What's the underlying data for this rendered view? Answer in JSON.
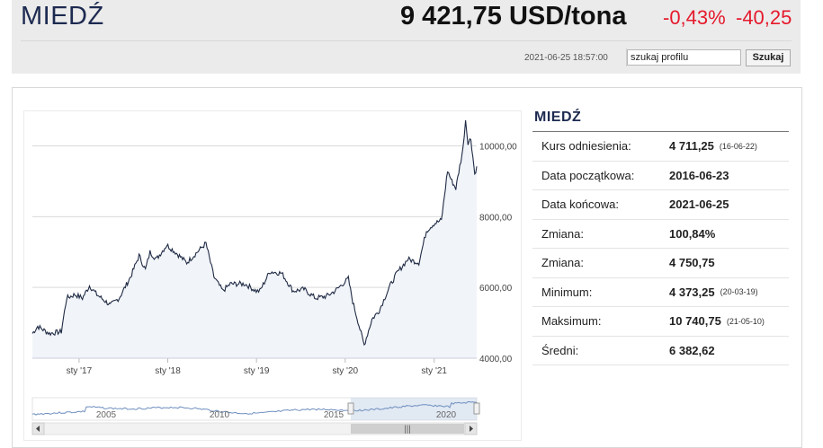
{
  "header": {
    "title": "MIEDŹ",
    "price": "9 421,75 USD/tona",
    "change_pct": "-0,43%",
    "change_abs": "-40,25",
    "timestamp": "2021-06-25 18:57:00",
    "search_value": "szukaj profilu",
    "search_button": "Szukaj"
  },
  "colors": {
    "accent_red": "#e5192c",
    "title_navy": "#1d2a50",
    "line": "#1f2a44",
    "navigator_fill": "#c8d7ea"
  },
  "info": {
    "title": "MIEDŹ",
    "rows": [
      {
        "label": "Kurs odniesienia:",
        "value": "4 711,25",
        "date": "(16-06-22)"
      },
      {
        "label": "Data początkowa:",
        "value": "2016-06-23",
        "date": ""
      },
      {
        "label": "Data końcowa:",
        "value": "2021-06-25",
        "date": ""
      },
      {
        "label": "Zmiana:",
        "value": "100,84%",
        "date": ""
      },
      {
        "label": "Zmiana:",
        "value": "4 750,75",
        "date": ""
      },
      {
        "label": "Minimum:",
        "value": "4 373,25",
        "date": "(20-03-19)"
      },
      {
        "label": "Maksimum:",
        "value": "10 740,75",
        "date": "(21-05-10)"
      },
      {
        "label": "Średni:",
        "value": "6 382,62",
        "date": ""
      }
    ]
  },
  "chart_data": {
    "type": "area",
    "x_ticks": [
      "sty '17",
      "sty '18",
      "sty '19",
      "sty '20",
      "sty '21"
    ],
    "y_ticks": [
      "4000,00",
      "6000,00",
      "8000,00",
      "10000,00"
    ],
    "ylim": [
      4000,
      10800
    ],
    "xlim": [
      "2016-06-23",
      "2021-06-25"
    ],
    "grid": true,
    "series": [
      {
        "points": [
          [
            "2016-06-23",
            4700
          ],
          [
            "2016-07-15",
            4900
          ],
          [
            "2016-09-01",
            4700
          ],
          [
            "2016-10-20",
            4750
          ],
          [
            "2016-11-11",
            5700
          ],
          [
            "2016-12-15",
            5800
          ],
          [
            "2017-01-15",
            5700
          ],
          [
            "2017-02-13",
            6050
          ],
          [
            "2017-03-15",
            5800
          ],
          [
            "2017-05-10",
            5500
          ],
          [
            "2017-06-15",
            5700
          ],
          [
            "2017-08-01",
            6300
          ],
          [
            "2017-09-05",
            6900
          ],
          [
            "2017-10-01",
            6500
          ],
          [
            "2017-10-20",
            7000
          ],
          [
            "2017-11-15",
            6800
          ],
          [
            "2017-12-28",
            7200
          ],
          [
            "2018-02-01",
            7000
          ],
          [
            "2018-03-20",
            6700
          ],
          [
            "2018-04-18",
            6900
          ],
          [
            "2018-06-07",
            7250
          ],
          [
            "2018-07-10",
            6300
          ],
          [
            "2018-08-15",
            5900
          ],
          [
            "2018-09-15",
            6100
          ],
          [
            "2018-11-15",
            6100
          ],
          [
            "2018-12-31",
            5900
          ],
          [
            "2019-01-15",
            5900
          ],
          [
            "2019-02-25",
            6450
          ],
          [
            "2019-04-15",
            6400
          ],
          [
            "2019-06-01",
            5900
          ],
          [
            "2019-07-15",
            5950
          ],
          [
            "2019-09-01",
            5700
          ],
          [
            "2019-10-15",
            5750
          ],
          [
            "2019-11-20",
            5900
          ],
          [
            "2020-01-14",
            6250
          ],
          [
            "2020-02-01",
            5600
          ],
          [
            "2020-03-19",
            4373
          ],
          [
            "2020-04-20",
            5100
          ],
          [
            "2020-05-20",
            5350
          ],
          [
            "2020-06-30",
            6000
          ],
          [
            "2020-07-31",
            6400
          ],
          [
            "2020-09-15",
            6800
          ],
          [
            "2020-10-30",
            6700
          ],
          [
            "2020-11-30",
            7600
          ],
          [
            "2020-12-31",
            7800
          ],
          [
            "2021-01-31",
            7900
          ],
          [
            "2021-02-25",
            9300
          ],
          [
            "2021-03-15",
            9000
          ],
          [
            "2021-03-31",
            8800
          ],
          [
            "2021-04-29",
            9900
          ],
          [
            "2021-05-10",
            10741
          ],
          [
            "2021-05-20",
            10100
          ],
          [
            "2021-06-01",
            10200
          ],
          [
            "2021-06-17",
            9200
          ],
          [
            "2021-06-25",
            9421
          ]
        ]
      }
    ],
    "navigator": {
      "x_ticks": [
        "2005",
        "2010",
        "2015",
        "2020"
      ]
    }
  }
}
